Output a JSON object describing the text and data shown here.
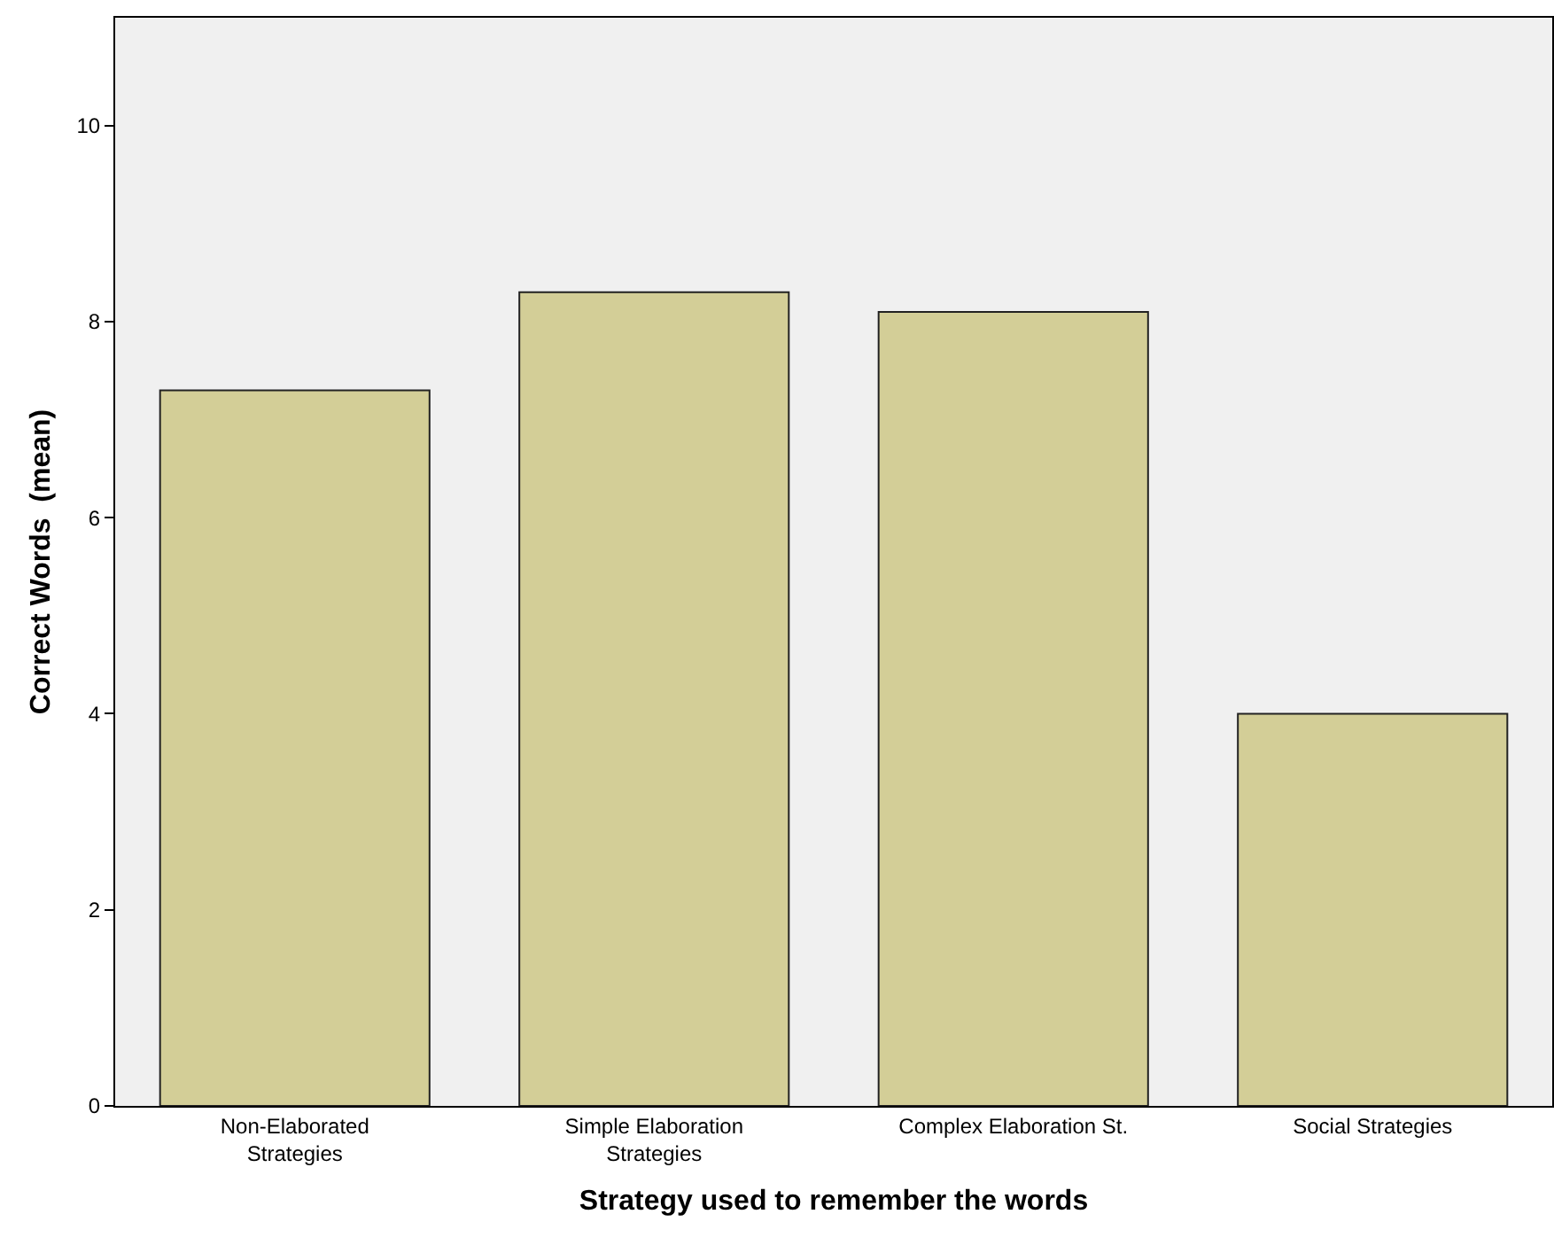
{
  "chart_data": {
    "type": "bar",
    "xlabel": "Strategy used to remember the words",
    "ylabel": "Correct Words  (mean)",
    "categories": [
      "Non-Elaborated\nStrategies",
      "Simple Elaboration\nStrategies",
      "Complex Elaboration St.",
      "Social Strategies"
    ],
    "values": [
      7.3,
      8.3,
      8.1,
      4.0
    ],
    "color": "#d3ce97",
    "ylim": [
      0,
      11.1
    ],
    "yticks": [
      0,
      2,
      4,
      6,
      8,
      10
    ],
    "grid": false,
    "legend": false
  }
}
